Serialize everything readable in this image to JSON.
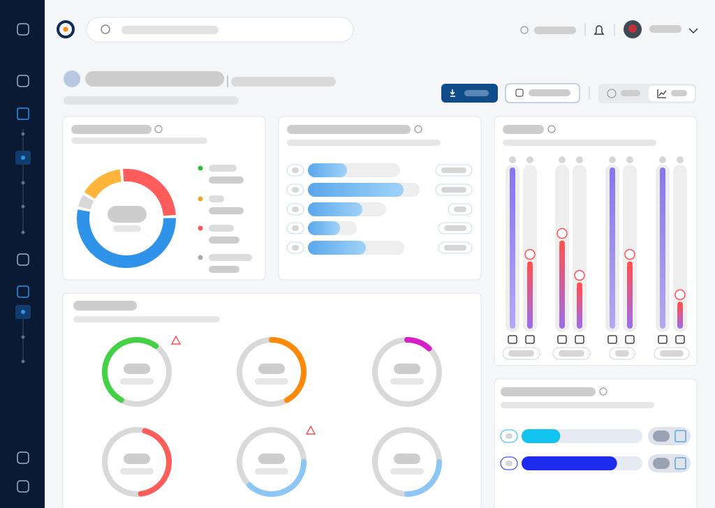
{
  "dashboard": {
    "donut": {
      "start": -58,
      "values": [
        15,
        26,
        54,
        5
      ],
      "colors": [
        "#ffb53b",
        "#ff5c5c",
        "#2f93ea",
        "#d8d8d8"
      ]
    },
    "bars": {
      "values": [
        56,
        137,
        78,
        46,
        83
      ],
      "totals": [
        132,
        160,
        112,
        70,
        138
      ]
    },
    "rings": [
      {
        "start": 58,
        "value": 52,
        "color": "#45d145",
        "alert": true
      },
      {
        "start": 0,
        "value": 42,
        "color": "#ff8a0a",
        "alert": false
      },
      {
        "start": 0,
        "value": 12,
        "color": "#d61fc6",
        "alert": false
      },
      {
        "start": 4,
        "value": 44,
        "color": "#ff5c5c",
        "alert": false
      },
      {
        "start": 25,
        "value": 37,
        "color": "#8cc6f5",
        "alert": true
      },
      {
        "start": 25,
        "value": 25,
        "color": "#8cc6f5",
        "alert": false
      }
    ],
    "levels": {
      "values": [
        100,
        40,
        53,
        27,
        100,
        40,
        100,
        15
      ],
      "marked": [
        false,
        true,
        true,
        true,
        false,
        true,
        false,
        true
      ]
    },
    "meters": {
      "values": [
        32,
        79
      ],
      "colors": [
        "#12c3f0",
        "#1f2cf0"
      ]
    }
  }
}
